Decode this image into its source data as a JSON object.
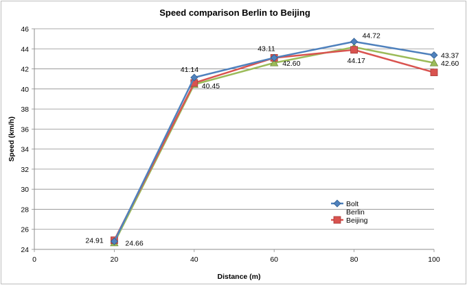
{
  "chart_data": {
    "type": "line",
    "title": "Speed comparison Berlin to Beijing",
    "xlabel": "Distance (m)",
    "ylabel": "Speed (km/h)",
    "xlim": [
      0,
      100
    ],
    "ylim": [
      24,
      46
    ],
    "xticks": [
      0,
      20,
      40,
      60,
      80,
      100
    ],
    "yticks": [
      24,
      26,
      28,
      30,
      32,
      34,
      36,
      38,
      40,
      42,
      44,
      46
    ],
    "grid": "horizontal",
    "legend_position": "bottom-right",
    "x": [
      20,
      40,
      60,
      80,
      100
    ],
    "series": [
      {
        "name": "Bolt",
        "color": "#4f81bd",
        "marker": "diamond",
        "values": [
          24.8,
          41.14,
          43.11,
          44.72,
          43.37
        ],
        "labels": {
          "1": "41.14",
          "2": "43.11",
          "3": "44.72",
          "4": "43.37"
        }
      },
      {
        "name": "Berlin",
        "color": "#9bbb59",
        "marker": "triangle",
        "values": [
          24.66,
          40.45,
          42.6,
          44.17,
          42.6
        ],
        "labels": {
          "0": "24.66",
          "1": "40.45",
          "2": "42.60",
          "3": "44.17",
          "4": "42.60"
        }
      },
      {
        "name": "Beijing",
        "color": "#d9534f",
        "marker": "square",
        "values": [
          24.91,
          40.6,
          43.1,
          43.9,
          41.65
        ],
        "labels": {
          "0": "24.91"
        }
      }
    ]
  }
}
